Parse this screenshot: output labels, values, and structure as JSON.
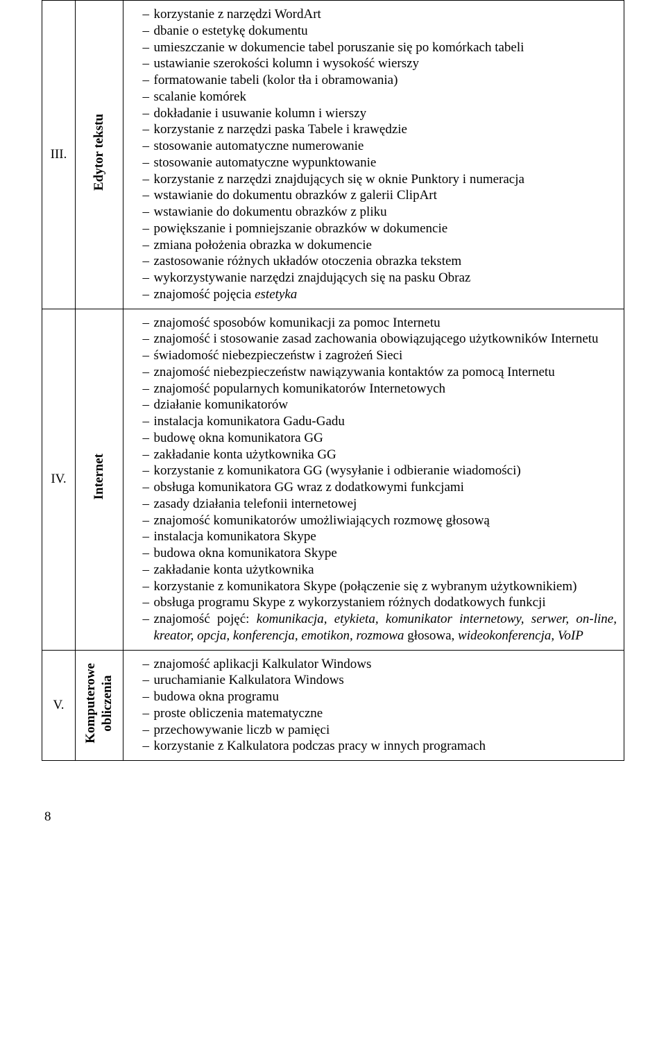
{
  "rows": [
    {
      "num": "III.",
      "category": "Edytor tekstu",
      "items": [
        "korzystanie z narzędzi WordArt",
        "dbanie o estetykę dokumentu",
        "umieszczanie w dokumencie tabel poruszanie się po komórkach tabeli",
        "ustawianie szerokości kolumn i wysokość wierszy",
        "formatowanie tabeli (kolor tła i obramowania)",
        "scalanie komórek",
        "dokładanie i usuwanie kolumn i wierszy",
        "korzystanie z narzędzi paska Tabele i krawędzie",
        "stosowanie automatyczne numerowanie",
        "stosowanie automatyczne wypunktowanie",
        "korzystanie z narzędzi znajdujących się w oknie Punktory i numeracja",
        "wstawianie do dokumentu obrazków z galerii ClipArt",
        "wstawianie do dokumentu obrazków z pliku",
        "powiększanie i pomniejszanie obrazków w dokumencie",
        "zmiana położenia obrazka w dokumencie",
        "zastosowanie różnych układów otoczenia obrazka tekstem",
        "wykorzystywanie narzędzi znajdujących się na pasku Obraz",
        "znajomość pojęcia <span class=\"italic\">estetyka</span>"
      ]
    },
    {
      "num": "IV.",
      "category": "Internet",
      "items": [
        "znajomość sposobów komunikacji za pomoc Internetu",
        "znajomość i stosowanie zasad zachowania obowiązującego użytkowników Internetu",
        "świadomość niebezpieczeństw i zagrożeń Sieci",
        "znajomość niebezpieczeństw nawiązywania kontaktów za pomocą Internetu",
        "znajomość popularnych komunikatorów Internetowych",
        "działanie komunikatorów",
        "instalacja komunikatora Gadu-Gadu",
        "budowę okna komunikatora GG",
        "zakładanie konta użytkownika GG",
        "korzystanie z komunikatora GG (wysyłanie i odbieranie wiadomości)",
        "obsługa komunikatora GG wraz z dodatkowymi funkcjami",
        "zasady działania telefonii internetowej",
        "znajomość komunikatorów umożliwiających rozmowę głosową",
        "instalacja komunikatora Skype",
        "budowa okna komunikatora Skype",
        "zakładanie konta użytkownika",
        "korzystanie z komunikatora Skype (połączenie się z wybranym użytkownikiem)",
        "obsługa programu Skype z wykorzystaniem różnych dodatkowych funkcji",
        "znajomość pojęć: <span class=\"italic\">komunikacja, etykieta, komunikator internetowy, serwer, on-line, kreator, opcja, konferencja, emotikon, rozmowa</span> głosowa, <span class=\"italic\">wideokonferencja, VoIP</span>"
      ]
    },
    {
      "num": "V.",
      "category": "Komputerowe obliczenia",
      "items": [
        "znajomość aplikacji Kalkulator Windows",
        "uruchamianie Kalkulatora Windows",
        "budowa okna programu",
        "proste obliczenia matematyczne",
        "przechowywanie liczb w pamięci",
        "korzystanie z Kalkulatora podczas pracy w innych programach"
      ]
    }
  ],
  "pageNumber": "8"
}
